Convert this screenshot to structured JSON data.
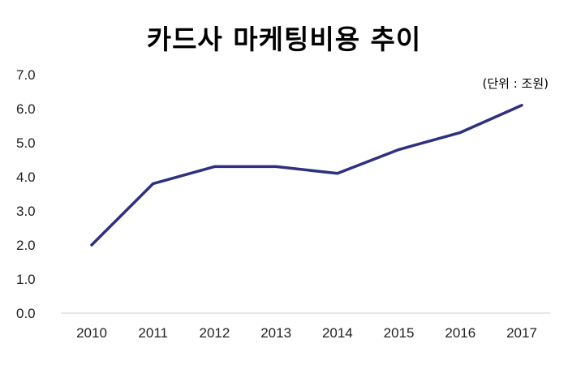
{
  "chart_data": {
    "type": "line",
    "title": "카드사 마케팅비용 추이",
    "unit_note": "(단위 : 조원)",
    "xlabel": "",
    "ylabel": "",
    "categories": [
      "2010",
      "2011",
      "2012",
      "2013",
      "2014",
      "2015",
      "2016",
      "2017"
    ],
    "series": [
      {
        "values": [
          2.0,
          3.8,
          4.3,
          4.3,
          4.1,
          4.8,
          5.3,
          6.1
        ],
        "color": "#2e3080"
      }
    ],
    "ylim": [
      0,
      7
    ],
    "yticks": [
      "0.0",
      "1.0",
      "2.0",
      "3.0",
      "4.0",
      "5.0",
      "6.0",
      "7.0"
    ],
    "grid": false,
    "legend": "none",
    "axis_color": "#d0d0d0"
  }
}
